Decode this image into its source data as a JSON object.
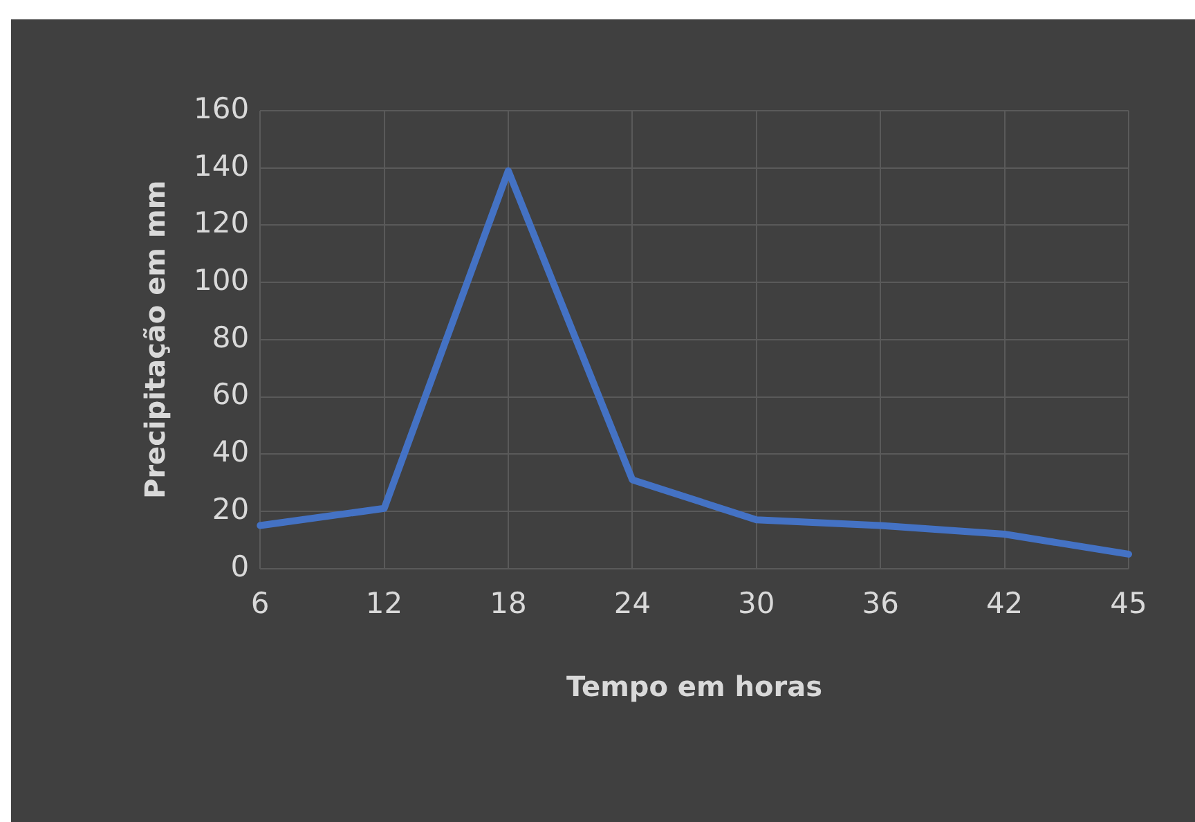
{
  "chart_data": {
    "type": "line",
    "xlabel": "Tempo em horas",
    "ylabel": "Precipitação em mm",
    "categories": [
      "6",
      "12",
      "18",
      "24",
      "30",
      "36",
      "42",
      "45"
    ],
    "series": [
      {
        "color": "#4472c4",
        "values": [
          15,
          21,
          139,
          31,
          17,
          15,
          12,
          5
        ]
      }
    ],
    "ylim": [
      0,
      160
    ],
    "yticks": [
      0,
      20,
      40,
      60,
      80,
      100,
      120,
      140,
      160
    ],
    "grid": true,
    "legend": false,
    "marker": "none",
    "line_style": "solid"
  }
}
